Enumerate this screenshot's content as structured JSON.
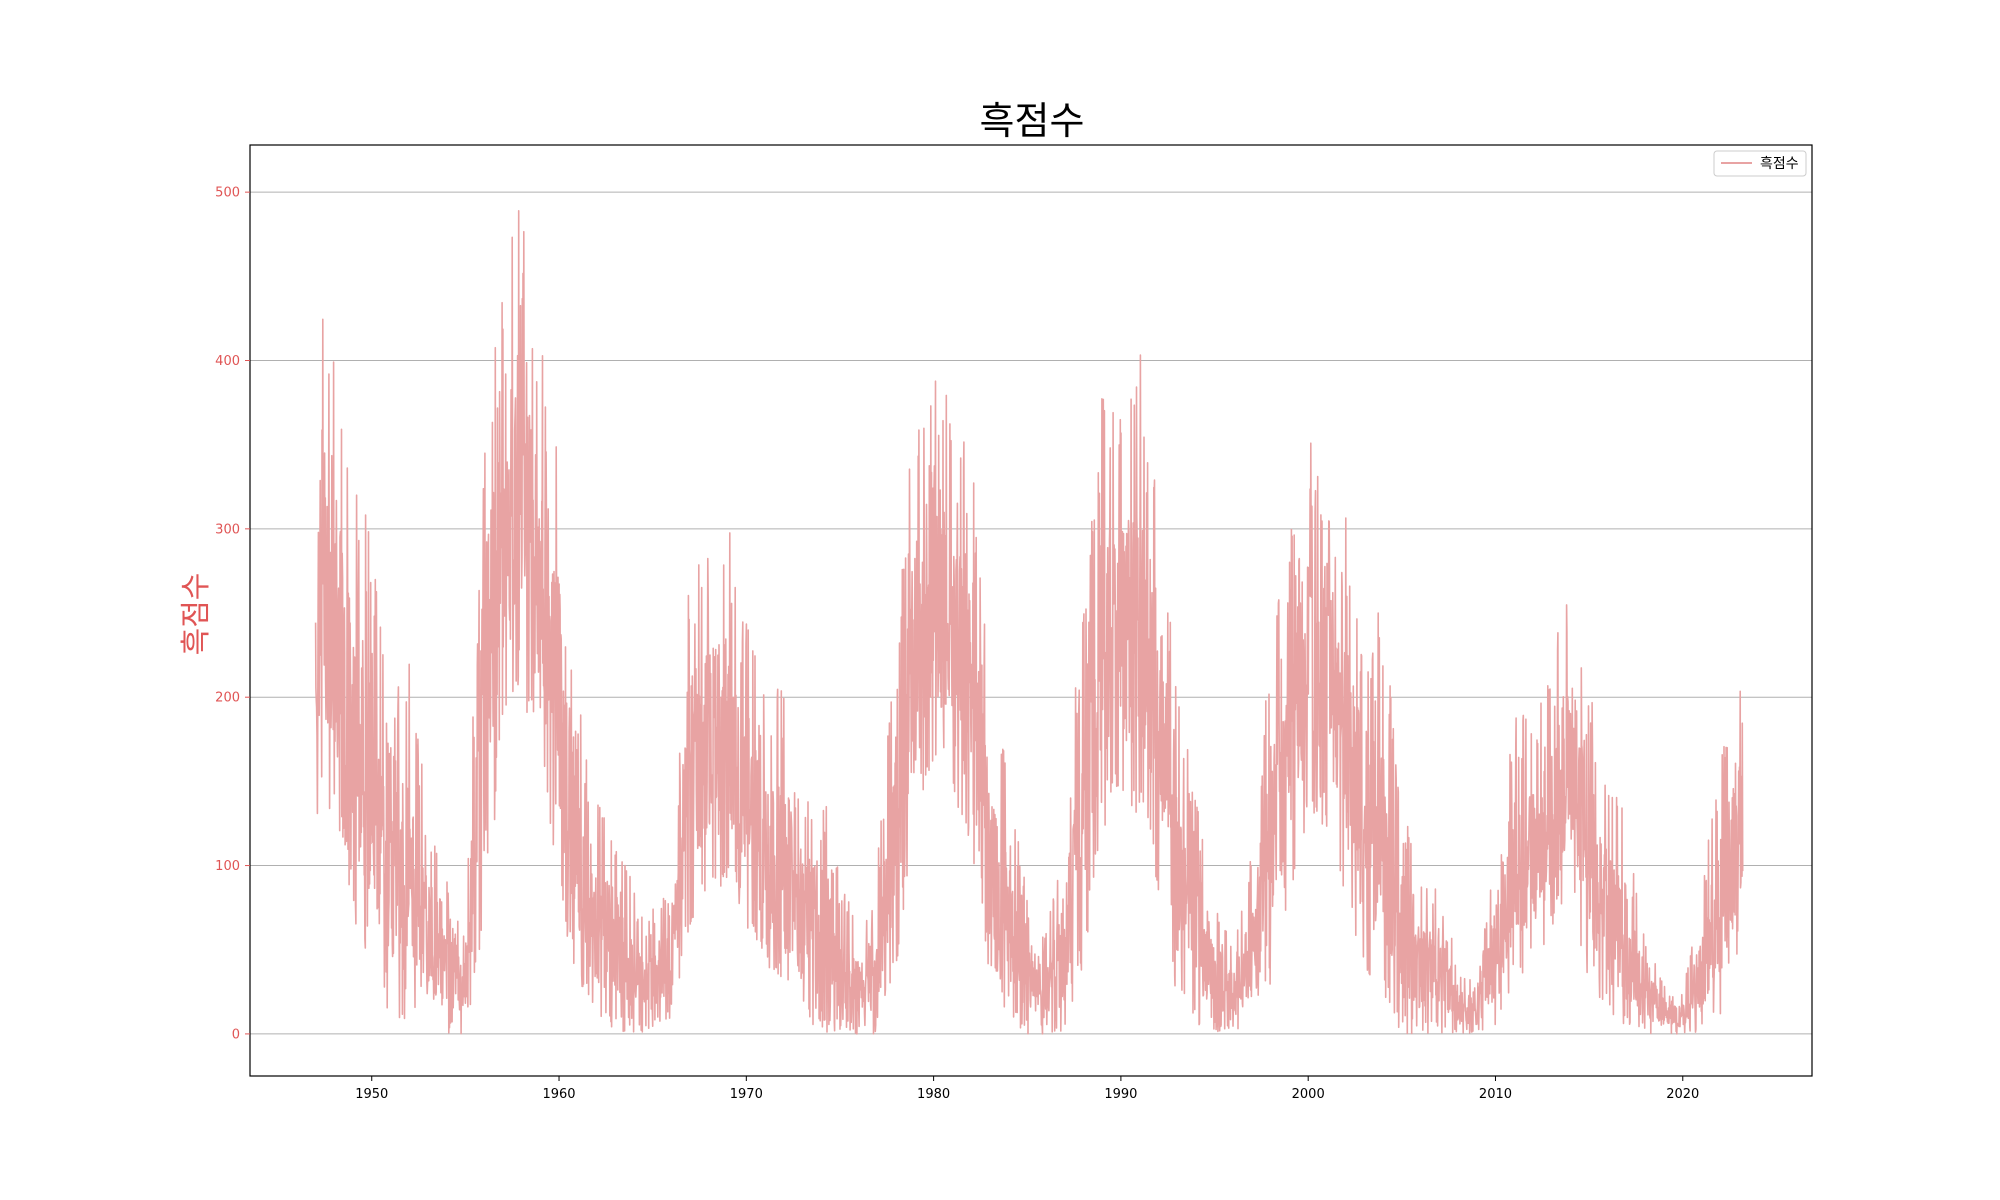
{
  "chart_data": {
    "type": "line",
    "title": "흑점수",
    "xlabel": "",
    "ylabel": "흑점수",
    "xlim": [
      1943.5,
      2026.9
    ],
    "ylim": [
      -25,
      528
    ],
    "grid": {
      "x": false,
      "y": true
    },
    "legend_position": "top-right",
    "x_ticks": [
      1950,
      1960,
      1970,
      1980,
      1990,
      2000,
      2010,
      2020
    ],
    "y_ticks": [
      0,
      100,
      200,
      300,
      400,
      500
    ],
    "colors": {
      "series": "#e8a3a3",
      "ylabel": "#e05555",
      "ytick": "#e05555",
      "grid": "#b0b0b0",
      "axes": "#000000"
    },
    "series": [
      {
        "name": "흑점수",
        "x_start": 1947.0,
        "x_end": 2023.2,
        "envelope": {
          "x": [
            1947.0,
            1947.3,
            1948.0,
            1949.0,
            1950.0,
            1951.0,
            1952.0,
            1953.0,
            1954.0,
            1955.0,
            1956.0,
            1957.0,
            1957.9,
            1958.5,
            1959.0,
            1960.0,
            1961.0,
            1962.0,
            1963.0,
            1964.0,
            1964.8,
            1966.0,
            1967.0,
            1968.0,
            1969.0,
            1970.0,
            1971.0,
            1972.0,
            1973.0,
            1974.0,
            1975.0,
            1976.0,
            1977.0,
            1978.0,
            1979.0,
            1979.9,
            1981.0,
            1982.0,
            1983.0,
            1984.0,
            1985.0,
            1986.0,
            1987.0,
            1988.0,
            1989.0,
            1990.0,
            1991.0,
            1992.0,
            1993.0,
            1994.0,
            1995.0,
            1996.0,
            1997.0,
            1998.0,
            1999.0,
            2000.0,
            2001.0,
            2002.0,
            2003.0,
            2004.0,
            2005.0,
            2006.0,
            2007.0,
            2008.0,
            2009.0,
            2010.0,
            2011.0,
            2012.0,
            2013.0,
            2014.0,
            2015.0,
            2016.0,
            2017.0,
            2018.0,
            2019.0,
            2020.0,
            2021.0,
            2022.0,
            2023.2
          ],
          "high": [
            320,
            457,
            440,
            330,
            310,
            190,
            230,
            130,
            110,
            60,
            380,
            440,
            505,
            440,
            420,
            360,
            200,
            150,
            120,
            90,
            70,
            100,
            280,
            300,
            305,
            250,
            200,
            210,
            150,
            150,
            100,
            60,
            110,
            250,
            370,
            428,
            365,
            360,
            200,
            165,
            80,
            60,
            120,
            270,
            385,
            370,
            410,
            340,
            200,
            150,
            80,
            50,
            110,
            240,
            295,
            355,
            355,
            310,
            250,
            250,
            140,
            90,
            90,
            40,
            30,
            110,
            195,
            190,
            215,
            295,
            210,
            150,
            130,
            55,
            30,
            25,
            85,
            170,
            210
          ],
          "low": [
            105,
            150,
            120,
            70,
            40,
            10,
            5,
            0,
            0,
            0,
            60,
            180,
            200,
            180,
            150,
            80,
            30,
            10,
            0,
            0,
            0,
            10,
            60,
            80,
            90,
            60,
            40,
            20,
            10,
            0,
            0,
            0,
            0,
            40,
            120,
            160,
            140,
            100,
            30,
            10,
            0,
            0,
            0,
            40,
            120,
            140,
            120,
            80,
            20,
            5,
            0,
            0,
            0,
            30,
            80,
            130,
            120,
            80,
            30,
            20,
            0,
            0,
            0,
            0,
            0,
            0,
            30,
            40,
            60,
            80,
            30,
            10,
            0,
            0,
            0,
            0,
            0,
            10,
            60
          ]
        },
        "points_per_year": 52
      }
    ]
  }
}
